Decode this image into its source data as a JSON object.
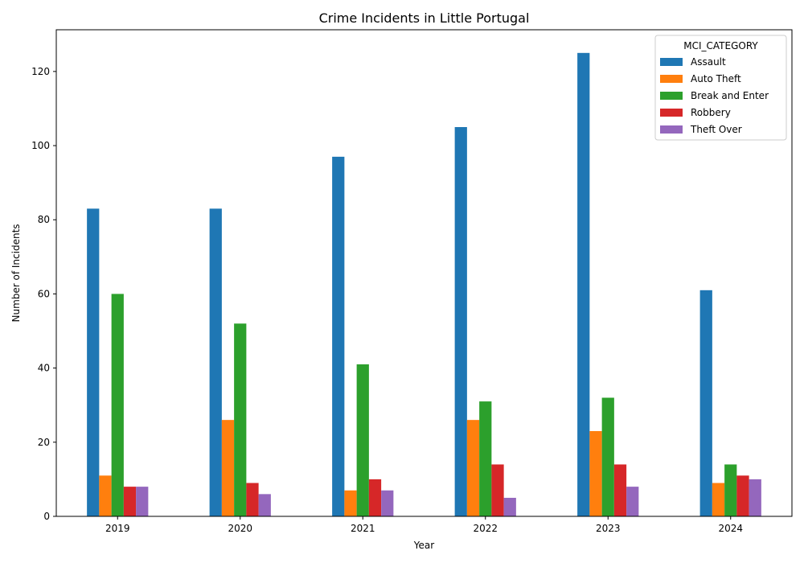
{
  "chart_data": {
    "type": "bar",
    "title": "Crime Incidents in Little Portugal",
    "xlabel": "Year",
    "ylabel": "Number of Incidents",
    "categories": [
      "2019",
      "2020",
      "2021",
      "2022",
      "2023",
      "2024"
    ],
    "ylim": [
      0,
      131.25
    ],
    "yticks": [
      0,
      20,
      40,
      60,
      80,
      100,
      120
    ],
    "grid": false,
    "legend": {
      "title": "MCI_CATEGORY",
      "placement": "top-right"
    },
    "series": [
      {
        "name": "Assault",
        "color": "#1f77b4",
        "values": [
          83,
          83,
          97,
          105,
          125,
          61
        ]
      },
      {
        "name": "Auto Theft",
        "color": "#ff7f0e",
        "values": [
          11,
          26,
          7,
          26,
          23,
          9
        ]
      },
      {
        "name": "Break and Enter",
        "color": "#2ca02c",
        "values": [
          60,
          52,
          41,
          31,
          32,
          14
        ]
      },
      {
        "name": "Robbery",
        "color": "#d62728",
        "values": [
          8,
          9,
          10,
          14,
          14,
          11
        ]
      },
      {
        "name": "Theft Over",
        "color": "#9467bd",
        "values": [
          8,
          6,
          7,
          5,
          8,
          10
        ]
      }
    ]
  }
}
